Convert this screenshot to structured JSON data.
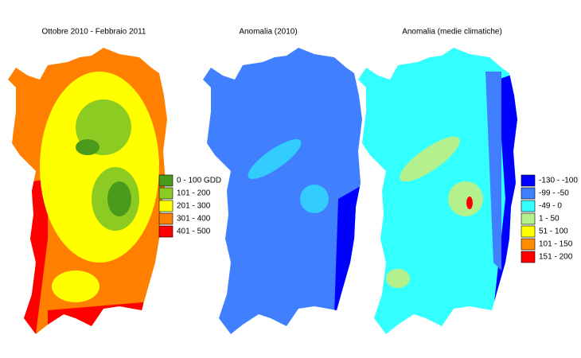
{
  "maps": [
    {
      "title": "Ottobre 2010 - Febbraio 2011",
      "legend": [
        {
          "label": "0 - 100 GDD",
          "color": "#4a9a1c"
        },
        {
          "label": "101 - 200",
          "color": "#8ccc22"
        },
        {
          "label": "201 - 300",
          "color": "#ffff00"
        },
        {
          "label": "301 - 400",
          "color": "#ff8000"
        },
        {
          "label": "401 - 500",
          "color": "#ff0000"
        }
      ]
    },
    {
      "title": "Anomalia (2010)"
    },
    {
      "title": "Anomalia (medie climatiche)",
      "legend": [
        {
          "label": "-130 - -100",
          "color": "#0000ff"
        },
        {
          "label": "-99 - -50",
          "color": "#4080ff"
        },
        {
          "label": "-49 - 0",
          "color": "#33ffff"
        },
        {
          "label": "1 - 50",
          "color": "#b4f08c"
        },
        {
          "label": "51 - 100",
          "color": "#ffff00"
        },
        {
          "label": "101 - 150",
          "color": "#ff8c00"
        },
        {
          "label": "151 - 200",
          "color": "#ff0000"
        }
      ]
    }
  ]
}
